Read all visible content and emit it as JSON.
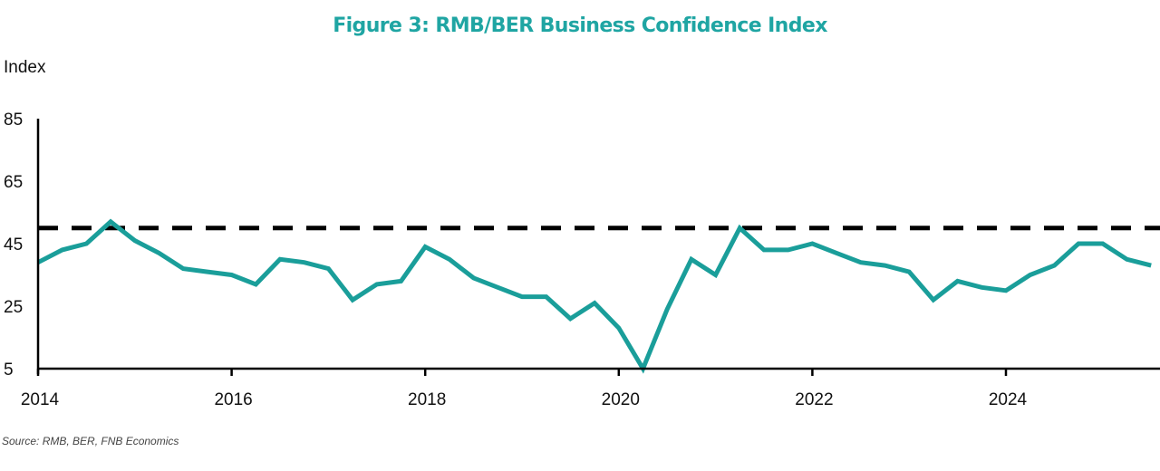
{
  "chart_data": {
    "type": "line",
    "title": "Figure 3: RMB/BER Business Confidence Index",
    "xlabel": "",
    "ylabel": "Index",
    "ylim": [
      5,
      85
    ],
    "yticks": [
      5,
      25,
      45,
      65,
      85
    ],
    "xticks": [
      "2014",
      "2016",
      "2018",
      "2020",
      "2022",
      "2024"
    ],
    "xrange": [
      2014.0,
      2025.75
    ],
    "grid": false,
    "frequency": "quarterly",
    "start": "2014Q1",
    "series": [
      {
        "name": "RMB/BER Business Confidence Index",
        "color": "#1a9e9a",
        "x": [
          "2014Q1",
          "2014Q2",
          "2014Q3",
          "2014Q4",
          "2015Q1",
          "2015Q2",
          "2015Q3",
          "2015Q4",
          "2016Q1",
          "2016Q2",
          "2016Q3",
          "2016Q4",
          "2017Q1",
          "2017Q2",
          "2017Q3",
          "2017Q4",
          "2018Q1",
          "2018Q2",
          "2018Q3",
          "2018Q4",
          "2019Q1",
          "2019Q2",
          "2019Q3",
          "2019Q4",
          "2020Q1",
          "2020Q2",
          "2020Q3",
          "2020Q4",
          "2021Q1",
          "2021Q2",
          "2021Q3",
          "2021Q4",
          "2022Q1",
          "2022Q2",
          "2022Q3",
          "2022Q4",
          "2023Q1",
          "2023Q2",
          "2023Q3",
          "2023Q4",
          "2024Q1",
          "2024Q2",
          "2024Q3",
          "2024Q4",
          "2025Q1",
          "2025Q2",
          "2025Q3"
        ],
        "values": [
          39,
          43,
          45,
          52,
          46,
          42,
          37,
          36,
          35,
          32,
          40,
          39,
          37,
          27,
          32,
          33,
          44,
          40,
          34,
          31,
          28,
          28,
          21,
          26,
          18,
          5,
          24,
          40,
          35,
          50,
          43,
          43,
          45,
          42,
          39,
          38,
          36,
          27,
          33,
          31,
          30,
          35,
          38,
          45,
          45,
          40,
          38
        ]
      }
    ],
    "reference_line": {
      "value": 50,
      "style": "dashed",
      "color": "#000000"
    },
    "source": "Source: RMB, BER, FNB Economics"
  }
}
